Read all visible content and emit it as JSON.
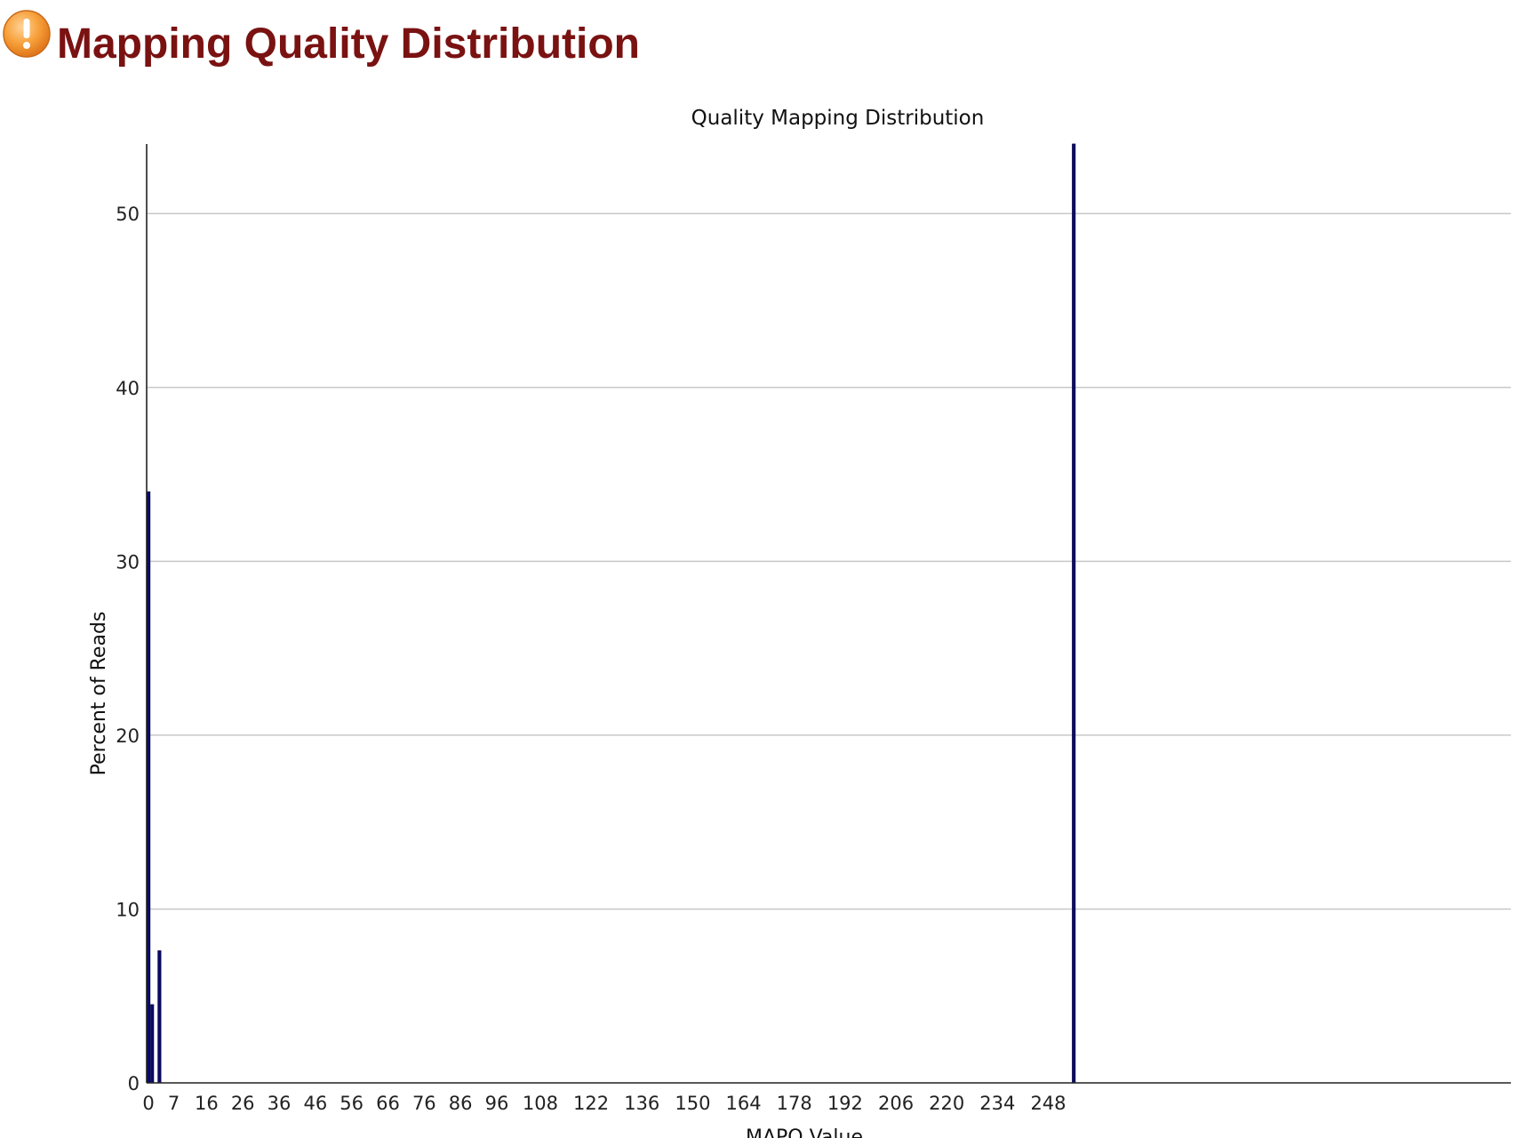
{
  "page": {
    "heading": "Mapping Quality Distribution",
    "status_icon": "warning-icon",
    "icon_color": "#f39a2c",
    "heading_color": "#7a1212"
  },
  "chart_data": {
    "type": "bar",
    "title": "Quality Mapping Distribution",
    "xlabel": "MAPQ Value",
    "ylabel": "Percent of Reads",
    "ylim": [
      0,
      54
    ],
    "xlim": [
      0,
      376
    ],
    "y_ticks": [
      0,
      10,
      20,
      30,
      40,
      50
    ],
    "x_ticks": [
      0,
      7,
      16,
      26,
      36,
      46,
      56,
      66,
      76,
      86,
      96,
      108,
      122,
      136,
      150,
      164,
      178,
      192,
      206,
      220,
      234,
      248
    ],
    "grid": true,
    "legend": false,
    "bar_color": "#0b0b6e",
    "series": [
      {
        "values": [
          {
            "x": 0,
            "y": 34.0
          },
          {
            "x": 1,
            "y": 4.5
          },
          {
            "x": 3,
            "y": 7.6
          },
          {
            "x": 255,
            "y": 54.0
          }
        ]
      }
    ]
  }
}
